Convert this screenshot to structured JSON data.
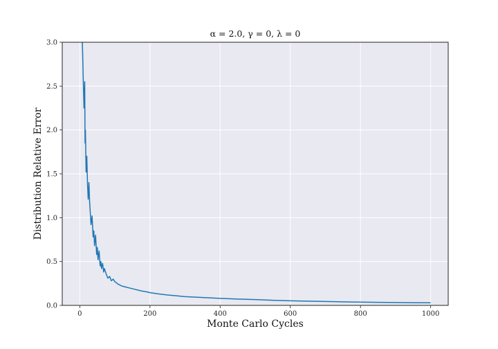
{
  "chart_data": {
    "type": "line",
    "title": "α = 2.0, γ = 0, λ = 0",
    "xlabel": "Monte Carlo Cycles",
    "ylabel": "Distribution Relative Error",
    "xlim": [
      -50,
      1050
    ],
    "ylim": [
      0,
      3.0
    ],
    "xticks": [
      0,
      200,
      400,
      600,
      800,
      1000
    ],
    "xtick_labels": [
      "0",
      "200",
      "400",
      "600",
      "800",
      "1000"
    ],
    "yticks": [
      0.0,
      0.5,
      1.0,
      1.5,
      2.0,
      2.5,
      3.0
    ],
    "ytick_labels": [
      "0.0",
      "0.5",
      "1.0",
      "1.5",
      "2.0",
      "2.5",
      "3.0"
    ],
    "grid": true,
    "legend": "none",
    "colors": {
      "line": "#1f77b4",
      "plot_background": "#e9e9f1",
      "grid": "#ffffff",
      "frame": "#222222"
    },
    "series": [
      {
        "x": [
          5,
          8,
          10,
          12,
          14,
          15,
          16,
          18,
          20,
          22,
          24,
          26,
          28,
          30,
          32,
          35,
          38,
          40,
          42,
          45,
          48,
          50,
          52,
          55,
          58,
          60,
          62,
          65,
          68,
          70,
          75,
          80,
          85,
          90,
          95,
          100,
          110,
          120,
          130,
          140,
          150,
          160,
          175,
          190,
          200,
          225,
          250,
          275,
          300,
          350,
          400,
          450,
          500,
          550,
          600,
          650,
          700,
          750,
          800,
          850,
          900,
          950,
          1000
        ],
        "values": [
          3.3,
          2.9,
          2.55,
          2.25,
          2.55,
          1.85,
          2.0,
          1.52,
          1.7,
          1.38,
          1.21,
          1.4,
          1.18,
          1.05,
          0.92,
          1.02,
          0.78,
          0.85,
          0.68,
          0.8,
          0.58,
          0.66,
          0.52,
          0.62,
          0.45,
          0.5,
          0.42,
          0.48,
          0.38,
          0.42,
          0.36,
          0.31,
          0.33,
          0.28,
          0.3,
          0.27,
          0.24,
          0.22,
          0.21,
          0.2,
          0.19,
          0.18,
          0.165,
          0.155,
          0.145,
          0.13,
          0.118,
          0.11,
          0.1,
          0.09,
          0.08,
          0.072,
          0.066,
          0.058,
          0.052,
          0.048,
          0.044,
          0.04,
          0.037,
          0.035,
          0.033,
          0.031,
          0.03
        ]
      }
    ]
  }
}
